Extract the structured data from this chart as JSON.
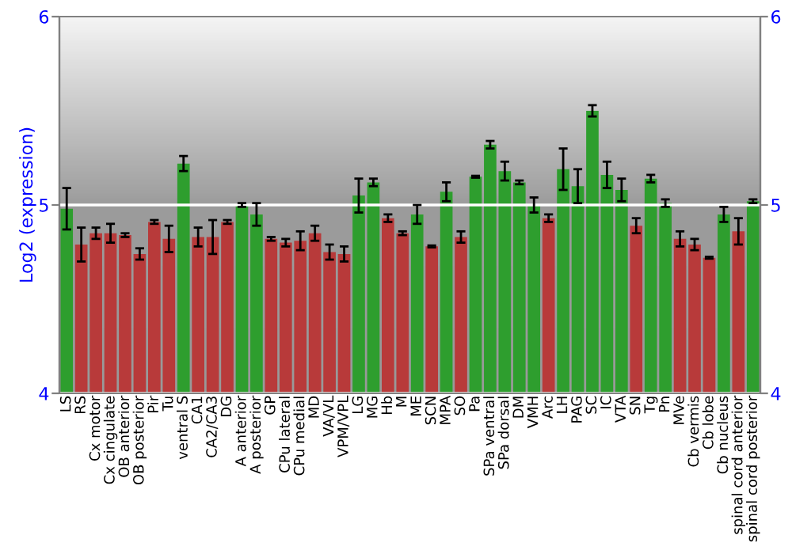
{
  "chart_data": {
    "type": "bar",
    "ylabel": "Log2 (expression)",
    "categories": [
      "LS",
      "RS",
      "Cx motor",
      "Cx cingulate",
      "OB anterior",
      "OB posterior",
      "Pir",
      "Tu",
      "ventral S",
      "CA1",
      "CA2/CA3",
      "DG",
      "A anterior",
      "A posterior",
      "GP",
      "CPu lateral",
      "CPu medial",
      "MD",
      "VA/VL",
      "VPM/VPL",
      "LG",
      "MG",
      "Hb",
      "M",
      "ME",
      "SCN",
      "MPA",
      "SO",
      "Pa",
      "SPa ventral",
      "SPa dorsal",
      "DM",
      "VMH",
      "Arc",
      "LH",
      "PAG",
      "SC",
      "IC",
      "VTA",
      "SN",
      "Tg",
      "Pn",
      "MVe",
      "Cb vermis",
      "Cb lobe",
      "Cb nucleus",
      "spinal cord anterior",
      "spinal cord posterior"
    ],
    "values": [
      4.98,
      4.79,
      4.85,
      4.85,
      4.84,
      4.74,
      4.91,
      4.82,
      5.22,
      4.83,
      4.83,
      4.91,
      5.0,
      4.95,
      4.82,
      4.8,
      4.81,
      4.85,
      4.75,
      4.74,
      5.05,
      5.12,
      4.93,
      4.85,
      4.95,
      4.78,
      5.07,
      4.83,
      5.15,
      5.32,
      5.18,
      5.12,
      5.0,
      4.93,
      5.19,
      5.1,
      5.5,
      5.16,
      5.08,
      4.89,
      5.14,
      5.01,
      4.82,
      4.79,
      4.72,
      4.95,
      4.86,
      5.02
    ],
    "errors": [
      0.11,
      0.09,
      0.03,
      0.05,
      0.01,
      0.03,
      0.01,
      0.07,
      0.04,
      0.05,
      0.09,
      0.01,
      0.01,
      0.06,
      0.01,
      0.02,
      0.05,
      0.04,
      0.04,
      0.04,
      0.09,
      0.02,
      0.02,
      0.01,
      0.05,
      0.005,
      0.05,
      0.03,
      0.005,
      0.02,
      0.05,
      0.01,
      0.04,
      0.02,
      0.11,
      0.09,
      0.03,
      0.07,
      0.06,
      0.04,
      0.02,
      0.02,
      0.04,
      0.03,
      0.005,
      0.04,
      0.07,
      0.01
    ],
    "colors": [
      "#2e9e2e",
      "#b83a3a",
      "#b83a3a",
      "#b83a3a",
      "#b83a3a",
      "#b83a3a",
      "#b83a3a",
      "#b83a3a",
      "#2e9e2e",
      "#b83a3a",
      "#b83a3a",
      "#b83a3a",
      "#2e9e2e",
      "#2e9e2e",
      "#b83a3a",
      "#b83a3a",
      "#b83a3a",
      "#b83a3a",
      "#b83a3a",
      "#b83a3a",
      "#2e9e2e",
      "#2e9e2e",
      "#b83a3a",
      "#b83a3a",
      "#2e9e2e",
      "#b83a3a",
      "#2e9e2e",
      "#b83a3a",
      "#2e9e2e",
      "#2e9e2e",
      "#2e9e2e",
      "#2e9e2e",
      "#2e9e2e",
      "#b83a3a",
      "#2e9e2e",
      "#2e9e2e",
      "#2e9e2e",
      "#2e9e2e",
      "#2e9e2e",
      "#b83a3a",
      "#2e9e2e",
      "#2e9e2e",
      "#b83a3a",
      "#b83a3a",
      "#b83a3a",
      "#2e9e2e",
      "#b83a3a",
      "#2e9e2e"
    ],
    "ylim": [
      4,
      6
    ],
    "yticks": [
      4,
      5,
      6
    ],
    "y2lim": [
      4,
      6
    ],
    "y2ticks": [
      4,
      5,
      6
    ],
    "grid": "y"
  }
}
